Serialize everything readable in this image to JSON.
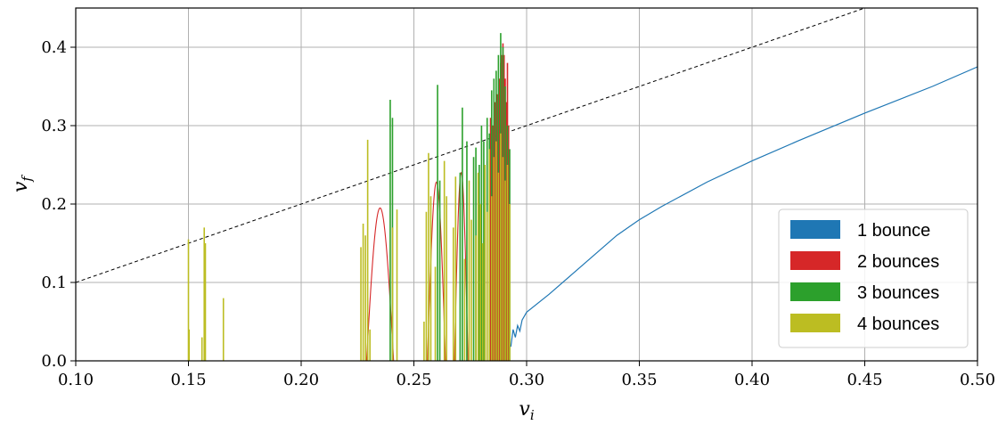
{
  "chart_data": {
    "type": "line",
    "xlabel": {
      "base": "v",
      "sub": "i"
    },
    "ylabel": {
      "base": "v",
      "sub": "f"
    },
    "xlim": [
      0.1,
      0.5
    ],
    "ylim": [
      0.0,
      0.45
    ],
    "xticks": [
      0.1,
      0.15,
      0.2,
      0.25,
      0.3,
      0.35,
      0.4,
      0.45,
      0.5
    ],
    "xtick_labels": [
      "0.10",
      "0.15",
      "0.20",
      "0.25",
      "0.30",
      "0.35",
      "0.40",
      "0.45",
      "0.50"
    ],
    "yticks": [
      0.0,
      0.1,
      0.2,
      0.3,
      0.4
    ],
    "ytick_labels": [
      "0.0",
      "0.1",
      "0.2",
      "0.3",
      "0.4"
    ],
    "grid": true,
    "legend_position": "lower-right",
    "reference_line": {
      "style": "dashed",
      "color": "#000000",
      "x": [
        0.1,
        0.45
      ],
      "y": [
        0.1,
        0.45
      ]
    },
    "series": [
      {
        "name": "1 bounce",
        "color": "#1f77b4",
        "kind": "curve",
        "x": [
          0.293,
          0.294,
          0.295,
          0.296,
          0.297,
          0.298,
          0.3,
          0.31,
          0.32,
          0.33,
          0.34,
          0.35,
          0.36,
          0.38,
          0.4,
          0.42,
          0.45,
          0.48,
          0.5
        ],
        "y": [
          0.018,
          0.04,
          0.03,
          0.045,
          0.038,
          0.052,
          0.062,
          0.085,
          0.11,
          0.135,
          0.16,
          0.18,
          0.197,
          0.228,
          0.255,
          0.28,
          0.316,
          0.35,
          0.375
        ]
      },
      {
        "name": "2 bounces",
        "color": "#d62728",
        "kind": "mixed",
        "arcs": [
          {
            "x0": 0.229,
            "x1": 0.241,
            "peak": 0.195
          },
          {
            "x0": 0.256,
            "x1": 0.264,
            "peak": 0.228
          },
          {
            "x0": 0.268,
            "x1": 0.274,
            "peak": 0.24
          }
        ],
        "spikes": [
          {
            "x": 0.2825,
            "y": 0.255
          },
          {
            "x": 0.284,
            "y": 0.31
          },
          {
            "x": 0.285,
            "y": 0.3
          },
          {
            "x": 0.286,
            "y": 0.33
          },
          {
            "x": 0.287,
            "y": 0.34
          },
          {
            "x": 0.288,
            "y": 0.36
          },
          {
            "x": 0.2885,
            "y": 0.38
          },
          {
            "x": 0.289,
            "y": 0.39
          },
          {
            "x": 0.2895,
            "y": 0.405
          },
          {
            "x": 0.29,
            "y": 0.39
          },
          {
            "x": 0.2905,
            "y": 0.36
          },
          {
            "x": 0.291,
            "y": 0.33
          },
          {
            "x": 0.2915,
            "y": 0.38
          },
          {
            "x": 0.292,
            "y": 0.3
          }
        ]
      },
      {
        "name": "3 bounces",
        "color": "#2ca02c",
        "kind": "spikes",
        "spikes": [
          {
            "x": 0.2395,
            "y": 0.333
          },
          {
            "x": 0.2405,
            "y": 0.31
          },
          {
            "x": 0.2605,
            "y": 0.352
          },
          {
            "x": 0.2615,
            "y": 0.23
          },
          {
            "x": 0.2705,
            "y": 0.24
          },
          {
            "x": 0.2715,
            "y": 0.323
          },
          {
            "x": 0.2735,
            "y": 0.28
          },
          {
            "x": 0.2765,
            "y": 0.26
          },
          {
            "x": 0.2775,
            "y": 0.272
          },
          {
            "x": 0.279,
            "y": 0.25
          },
          {
            "x": 0.28,
            "y": 0.3
          },
          {
            "x": 0.281,
            "y": 0.28
          },
          {
            "x": 0.2825,
            "y": 0.31
          },
          {
            "x": 0.2835,
            "y": 0.29
          },
          {
            "x": 0.2845,
            "y": 0.345
          },
          {
            "x": 0.2855,
            "y": 0.36
          },
          {
            "x": 0.2865,
            "y": 0.37
          },
          {
            "x": 0.2875,
            "y": 0.39
          },
          {
            "x": 0.2885,
            "y": 0.418
          },
          {
            "x": 0.2895,
            "y": 0.4
          },
          {
            "x": 0.2905,
            "y": 0.35
          },
          {
            "x": 0.2915,
            "y": 0.3
          },
          {
            "x": 0.2925,
            "y": 0.27
          }
        ]
      },
      {
        "name": "4 bounces",
        "color": "#bcbd22",
        "kind": "spikes",
        "spikes": [
          {
            "x": 0.15,
            "y": 0.155
          },
          {
            "x": 0.1503,
            "y": 0.04
          },
          {
            "x": 0.156,
            "y": 0.03
          },
          {
            "x": 0.157,
            "y": 0.17
          },
          {
            "x": 0.1575,
            "y": 0.15
          },
          {
            "x": 0.1655,
            "y": 0.08
          },
          {
            "x": 0.2265,
            "y": 0.145
          },
          {
            "x": 0.2275,
            "y": 0.175
          },
          {
            "x": 0.2285,
            "y": 0.16
          },
          {
            "x": 0.2295,
            "y": 0.282
          },
          {
            "x": 0.2305,
            "y": 0.04
          },
          {
            "x": 0.2405,
            "y": 0.17
          },
          {
            "x": 0.2425,
            "y": 0.193
          },
          {
            "x": 0.2545,
            "y": 0.05
          },
          {
            "x": 0.2555,
            "y": 0.19
          },
          {
            "x": 0.2565,
            "y": 0.265
          },
          {
            "x": 0.2575,
            "y": 0.21
          },
          {
            "x": 0.2595,
            "y": 0.12
          },
          {
            "x": 0.2635,
            "y": 0.255
          },
          {
            "x": 0.2645,
            "y": 0.21
          },
          {
            "x": 0.2675,
            "y": 0.17
          },
          {
            "x": 0.2685,
            "y": 0.235
          },
          {
            "x": 0.2725,
            "y": 0.13
          },
          {
            "x": 0.2745,
            "y": 0.23
          },
          {
            "x": 0.2755,
            "y": 0.18
          },
          {
            "x": 0.2775,
            "y": 0.16
          },
          {
            "x": 0.2785,
            "y": 0.24
          },
          {
            "x": 0.2795,
            "y": 0.2
          },
          {
            "x": 0.2805,
            "y": 0.15
          },
          {
            "x": 0.2815,
            "y": 0.25
          },
          {
            "x": 0.2825,
            "y": 0.19
          },
          {
            "x": 0.2835,
            "y": 0.27
          },
          {
            "x": 0.2845,
            "y": 0.21
          },
          {
            "x": 0.2855,
            "y": 0.26
          },
          {
            "x": 0.2865,
            "y": 0.28
          },
          {
            "x": 0.2875,
            "y": 0.24
          },
          {
            "x": 0.2885,
            "y": 0.29
          },
          {
            "x": 0.2895,
            "y": 0.26
          },
          {
            "x": 0.2905,
            "y": 0.23
          },
          {
            "x": 0.2915,
            "y": 0.25
          },
          {
            "x": 0.2925,
            "y": 0.2
          }
        ]
      }
    ]
  }
}
